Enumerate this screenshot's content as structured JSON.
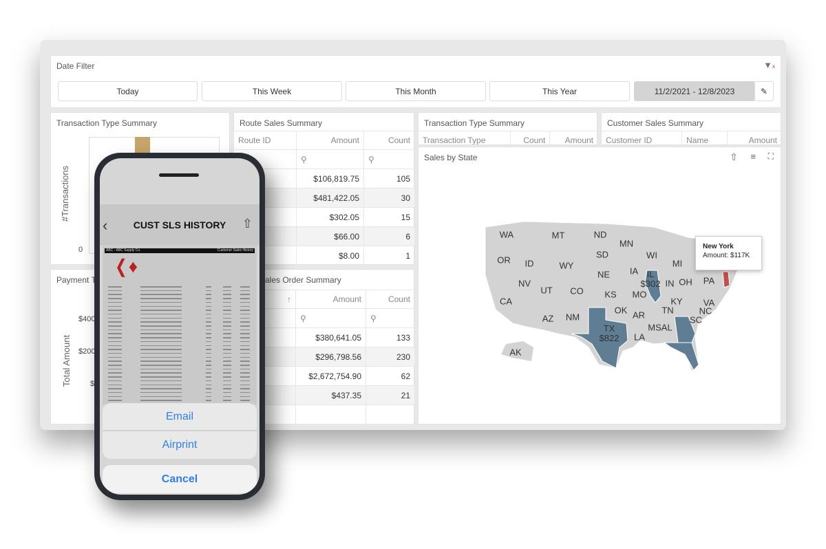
{
  "date_filter": {
    "title": "Date Filter",
    "buttons": [
      "Today",
      "This Week",
      "This Month",
      "This Year"
    ],
    "range": "11/2/2021 - 12/8/2023",
    "icons": {
      "clear": "filter-clear-icon",
      "edit": "pencil-icon"
    }
  },
  "tx_chart": {
    "title": "Transaction Type Summary",
    "ylabel": "#Transactions",
    "tick0": "0",
    "bar_color": "#c7a56a"
  },
  "route": {
    "title": "Route Sales Summary",
    "headers": [
      "Route ID",
      "Amount",
      "Count"
    ],
    "rows": [
      [
        "$106,819.75",
        "105"
      ],
      [
        "$481,422.05",
        "30"
      ],
      [
        "$302.05",
        "15"
      ],
      [
        "$66.00",
        "6"
      ],
      [
        "$8.00",
        "1"
      ]
    ]
  },
  "tx_table": {
    "title": "Transaction Type Summary",
    "headers": [
      "Transaction Type",
      "Count",
      "Amount"
    ]
  },
  "customer": {
    "title": "Customer Sales Summary",
    "headers": [
      "Customer ID",
      "Name",
      "Amount"
    ]
  },
  "payment": {
    "title": "Payment Ty",
    "ylabel": "Total Amount",
    "ticks": [
      "$400K",
      "$200K",
      "$"
    ]
  },
  "sales_order": {
    "title": "ales Order Summary",
    "headers": [
      "Amount",
      "Count"
    ],
    "rows": [
      [
        "$380,641.05",
        "133"
      ],
      [
        "$296,798.56",
        "230"
      ],
      [
        "$2,672,754.90",
        "62"
      ],
      [
        "$437.35",
        "21"
      ]
    ]
  },
  "map": {
    "title": "Sales by State",
    "highlight_color": "#5f7d93",
    "selected_color": "#c0504d",
    "base_color": "#d3d3d3",
    "states": [
      "WA",
      "MT",
      "ND",
      "MN",
      "OR",
      "ID",
      "WY",
      "SD",
      "WI",
      "MI",
      "NV",
      "UT",
      "CO",
      "NE",
      "IA",
      "IN",
      "OH",
      "PA",
      "CA",
      "KS",
      "MO",
      "KY",
      "VA",
      "AZ",
      "NM",
      "OK",
      "AR",
      "TN",
      "NC",
      "SC",
      "MSAL",
      "LA",
      "AK"
    ],
    "il": [
      "IL",
      "$302"
    ],
    "tx": [
      "TX",
      "$822"
    ],
    "tooltip": {
      "name": "New York",
      "value": "Amount: $117K"
    }
  },
  "phone": {
    "title": "CUST SLS HISTORY",
    "doc_company": "ABC - ABC Supply Co.",
    "doc_title": "Customer Sales History",
    "actions": [
      "Email",
      "Airprint"
    ],
    "cancel": "Cancel"
  }
}
